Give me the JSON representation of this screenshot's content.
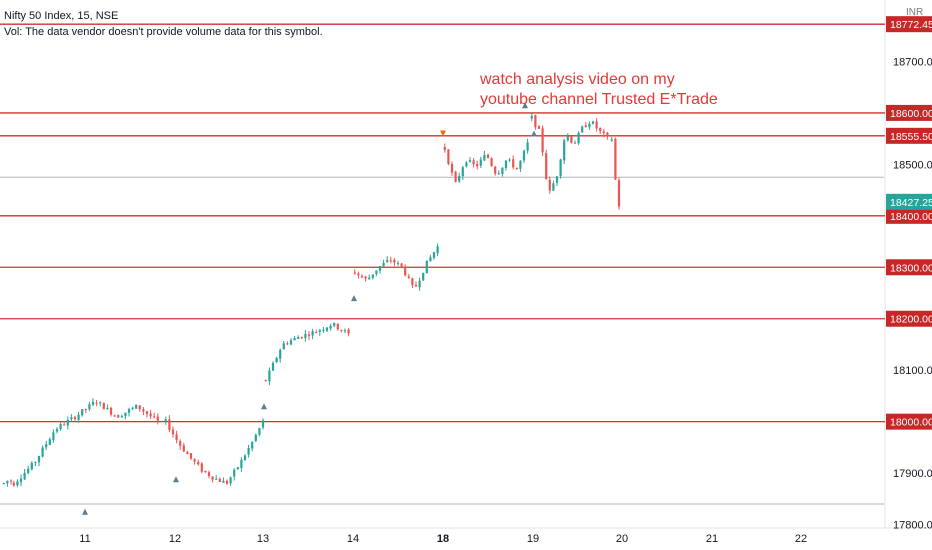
{
  "header": {
    "symbol_line": "Nifty 50 Index, 15, NSE",
    "volume_line": "Vol: The data vendor doesn't provide volume data for this symbol."
  },
  "annotation": {
    "line1": "watch analysis video on my",
    "line2": "youtube channel Trusted E*Trade",
    "color": "#e53935"
  },
  "chart_data": {
    "type": "candlestick",
    "currency_label": "INR",
    "price_axis": {
      "ylim": [
        17770,
        18800
      ],
      "ticks": [
        "17800.00",
        "17900.00",
        "18000.00",
        "18100.00",
        "18200.00",
        "18300.00",
        "18400.00",
        "18500.00",
        "18600.00",
        "18700.00"
      ]
    },
    "time_axis": {
      "labels": [
        {
          "text": "11",
          "bold": false
        },
        {
          "text": "12",
          "bold": false
        },
        {
          "text": "13",
          "bold": false
        },
        {
          "text": "14",
          "bold": false
        },
        {
          "text": "18",
          "bold": true
        },
        {
          "text": "19",
          "bold": false
        },
        {
          "text": "20",
          "bold": false
        },
        {
          "text": "21",
          "bold": false
        },
        {
          "text": "22",
          "bold": false
        }
      ]
    },
    "horizontal_levels": [
      {
        "price": 18772.45,
        "label": "18772.45"
      },
      {
        "price": 18600.0,
        "label": "18600.00"
      },
      {
        "price": 18555.5,
        "label": "18555.50"
      },
      {
        "price": 18400.0,
        "label": "18400.00"
      },
      {
        "price": 18300.0,
        "label": "18300.00"
      },
      {
        "price": 18200.0,
        "label": "18200.00"
      },
      {
        "price": 18000.0,
        "label": "18000.00"
      }
    ],
    "reference_lines": [
      18475,
      17840
    ],
    "last_price": {
      "value": 18427.25,
      "label": "18427.25"
    },
    "sessions": [
      {
        "day": "10",
        "path": [
          17880,
          17910,
          17860,
          17885
        ]
      },
      {
        "day": "11",
        "path": [
          17880,
          17920,
          17985,
          18010,
          18040,
          18010,
          18030,
          18000
        ]
      },
      {
        "day": "12",
        "path": [
          18000,
          17960,
          17930,
          17905,
          17890,
          17880,
          17915,
          17955,
          18000
        ]
      },
      {
        "day": "13",
        "path": [
          18080,
          18150,
          18165,
          18175,
          18190,
          18170
        ]
      },
      {
        "day": "14",
        "path": [
          18290,
          18275,
          18300,
          18315,
          18300,
          18255,
          18305,
          18340
        ]
      },
      {
        "day": "18",
        "path": [
          18530,
          18460,
          18510,
          18495,
          18520,
          18480,
          18510,
          18490,
          18540
        ]
      },
      {
        "day": "19",
        "path": [
          18590,
          18560,
          18440,
          18480,
          18560,
          18540,
          18570,
          18585,
          18565,
          18550
        ]
      },
      {
        "day": "20",
        "path": [
          18550,
          18510,
          18470,
          18380,
          18420
        ]
      }
    ],
    "colors": {
      "up": "#26a69a",
      "down": "#ef5350",
      "level_line": "#d32f2f",
      "level_label_bg": "#c62828",
      "reference_line": "#b2b5be",
      "last_price_bg": "#26a69a",
      "axis_text": "#131722"
    },
    "grid": false
  }
}
